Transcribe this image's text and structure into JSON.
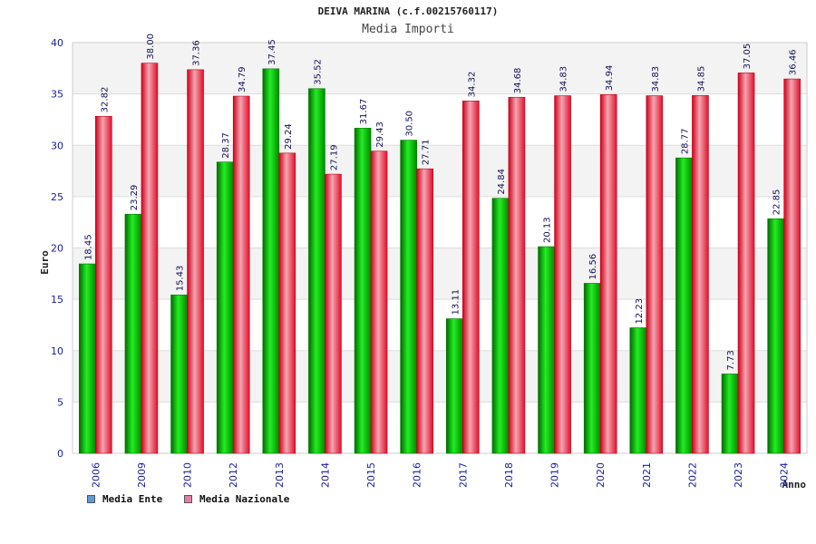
{
  "header": {
    "title": "DEIVA MARINA (c.f.00215760117)",
    "subtitle": "Media Importi"
  },
  "colors": {
    "ente": "#00a000",
    "nazionale": "#e8102a",
    "legend_ente": "#5b9bd5",
    "legend_nazionale": "#e07fa8"
  },
  "chart_data": {
    "type": "bar",
    "title": "Media Importi",
    "xlabel": "Anno",
    "ylabel": "Euro",
    "ylim": [
      0,
      40
    ],
    "yticks": [
      0,
      5,
      10,
      15,
      20,
      25,
      30,
      35,
      40
    ],
    "grid": true,
    "legend_position": "bottom-left",
    "categories": [
      "2006",
      "2009",
      "2010",
      "2012",
      "2013",
      "2014",
      "2015",
      "2016",
      "2017",
      "2018",
      "2019",
      "2020",
      "2021",
      "2022",
      "2023",
      "2024"
    ],
    "series": [
      {
        "name": "Media Ente",
        "values": [
          18.45,
          23.29,
          15.43,
          28.37,
          37.45,
          35.52,
          31.67,
          30.5,
          13.11,
          24.84,
          20.13,
          16.56,
          12.23,
          28.77,
          7.73,
          22.85
        ],
        "labels": [
          "18.45",
          "23.29",
          "15.43",
          "28.37",
          "37.45",
          "35.52",
          "31.67",
          "30.50",
          "13.11",
          "24.84",
          "20.13",
          "16.56",
          "12.23",
          "28.77",
          "7.73",
          "22.85"
        ]
      },
      {
        "name": "Media Nazionale",
        "values": [
          32.82,
          38.0,
          37.36,
          34.79,
          29.24,
          27.19,
          29.43,
          27.71,
          34.32,
          34.68,
          34.83,
          34.94,
          34.83,
          34.85,
          37.05,
          36.46
        ],
        "labels": [
          "32.82",
          "38.00",
          "37.36",
          "34.79",
          "29.24",
          "27.19",
          "29.43",
          "27.71",
          "34.32",
          "34.68",
          "34.83",
          "34.94",
          "34.83",
          "34.85",
          "37.05",
          "36.46"
        ]
      }
    ]
  }
}
